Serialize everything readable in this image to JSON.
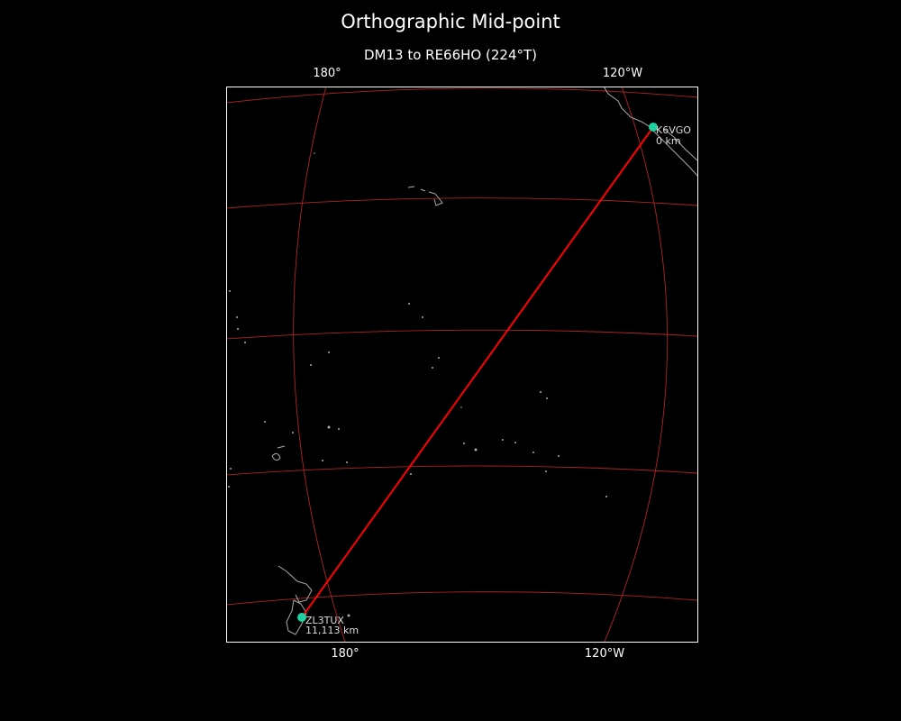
{
  "title": "Orthographic Mid-point",
  "subtitle": "DM13 to RE66HO (224°T)",
  "axes": {
    "top_ticks": [
      "180°",
      "120°W"
    ],
    "bottom_ticks": [
      "180°",
      "120°W"
    ]
  },
  "stations": [
    {
      "call": "K6VGO",
      "distance": "0 km"
    },
    {
      "call": "ZL3TUX",
      "distance": "11,113 km"
    }
  ],
  "colors": {
    "background": "#000000",
    "path": "#ff0000",
    "graticule": "#b22222",
    "coastline": "#aaaaaa",
    "station_marker": "#1fd1a0",
    "frame": "#ffffff"
  }
}
